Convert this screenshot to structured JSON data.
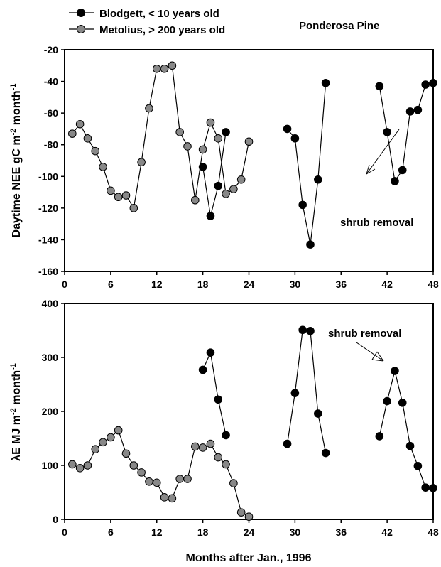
{
  "chart_data": [
    {
      "type": "line",
      "title": "Ponderosa Pine",
      "xlabel": "",
      "ylabel": {
        "main": "Daytime NEE gC m",
        "sup1": "-2",
        "mid": " month",
        "sup2": "-1"
      },
      "xlim": [
        0,
        48
      ],
      "ylim": [
        -160,
        -20
      ],
      "xticks": [
        0,
        6,
        12,
        18,
        24,
        30,
        36,
        42,
        48
      ],
      "yticks": [
        -20,
        -40,
        -60,
        -80,
        -100,
        -120,
        -140,
        -160
      ],
      "legend": "top-left",
      "series": [
        {
          "name": "Metolius, > 200 years old",
          "color": "#888888",
          "segments": [
            [
              [
                1,
                -73
              ],
              [
                2,
                -67
              ],
              [
                3,
                -76
              ],
              [
                4,
                -84
              ],
              [
                5,
                -94
              ],
              [
                6,
                -109
              ],
              [
                7,
                -113
              ],
              [
                8,
                -112
              ],
              [
                9,
                -120
              ],
              [
                10,
                -91
              ],
              [
                11,
                -57
              ],
              [
                12,
                -32
              ],
              [
                13,
                -32
              ],
              [
                14,
                -30
              ],
              [
                15,
                -72
              ],
              [
                16,
                -81
              ],
              [
                17,
                -115
              ],
              [
                18,
                -83
              ],
              [
                19,
                -66
              ],
              [
                20,
                -76
              ],
              [
                21,
                -111
              ],
              [
                22,
                -108
              ],
              [
                23,
                -102
              ],
              [
                24,
                -78
              ]
            ]
          ]
        },
        {
          "name": "Blodgett, < 10 years old",
          "color": "#000000",
          "segments": [
            [
              [
                18,
                -94
              ],
              [
                19,
                -125
              ],
              [
                20,
                -106
              ],
              [
                21,
                -72
              ]
            ],
            [
              [
                29,
                -70
              ],
              [
                30,
                -76
              ],
              [
                31,
                -118
              ],
              [
                32,
                -143
              ],
              [
                33,
                -102
              ],
              [
                34,
                -41
              ]
            ],
            [
              [
                41,
                -43
              ],
              [
                42,
                -72
              ],
              [
                43,
                -103
              ],
              [
                44,
                -96
              ],
              [
                45,
                -59
              ],
              [
                46,
                -58
              ],
              [
                47,
                -42
              ],
              [
                48,
                -41
              ]
            ]
          ]
        }
      ],
      "annotation": {
        "text": "shrub removal"
      }
    },
    {
      "type": "line",
      "title": "",
      "xlabel": "Months after Jan., 1996",
      "ylabel": {
        "main": "λE MJ m",
        "sup1": "-2",
        "mid": " month",
        "sup2": "-1"
      },
      "xlim": [
        0,
        48
      ],
      "ylim": [
        0,
        400
      ],
      "xticks": [
        0,
        6,
        12,
        18,
        24,
        30,
        36,
        42,
        48
      ],
      "yticks": [
        0,
        100,
        200,
        300,
        400
      ],
      "series": [
        {
          "name": "Metolius, > 200 years old",
          "color": "#888888",
          "segments": [
            [
              [
                1,
                102
              ],
              [
                2,
                95
              ],
              [
                3,
                100
              ],
              [
                4,
                130
              ],
              [
                5,
                143
              ],
              [
                6,
                152
              ],
              [
                7,
                165
              ],
              [
                8,
                122
              ],
              [
                9,
                100
              ],
              [
                10,
                87
              ],
              [
                11,
                70
              ],
              [
                12,
                68
              ],
              [
                13,
                41
              ],
              [
                14,
                39
              ],
              [
                15,
                75
              ],
              [
                16,
                75
              ],
              [
                17,
                135
              ],
              [
                18,
                133
              ],
              [
                19,
                140
              ],
              [
                20,
                115
              ],
              [
                21,
                102
              ],
              [
                22,
                67
              ],
              [
                23,
                13
              ],
              [
                24,
                5
              ]
            ]
          ]
        },
        {
          "name": "Blodgett, < 10 years old",
          "color": "#000000",
          "segments": [
            [
              [
                18,
                277
              ],
              [
                19,
                309
              ],
              [
                20,
                222
              ],
              [
                21,
                156
              ]
            ],
            [
              [
                29,
                140
              ],
              [
                30,
                234
              ],
              [
                31,
                351
              ],
              [
                32,
                349
              ],
              [
                33,
                196
              ],
              [
                34,
                123
              ]
            ],
            [
              [
                41,
                154
              ],
              [
                42,
                219
              ],
              [
                43,
                275
              ],
              [
                44,
                216
              ],
              [
                45,
                136
              ],
              [
                46,
                99
              ],
              [
                47,
                59
              ],
              [
                48,
                58
              ]
            ]
          ]
        }
      ],
      "annotation": {
        "text": "shrub removal"
      }
    }
  ]
}
